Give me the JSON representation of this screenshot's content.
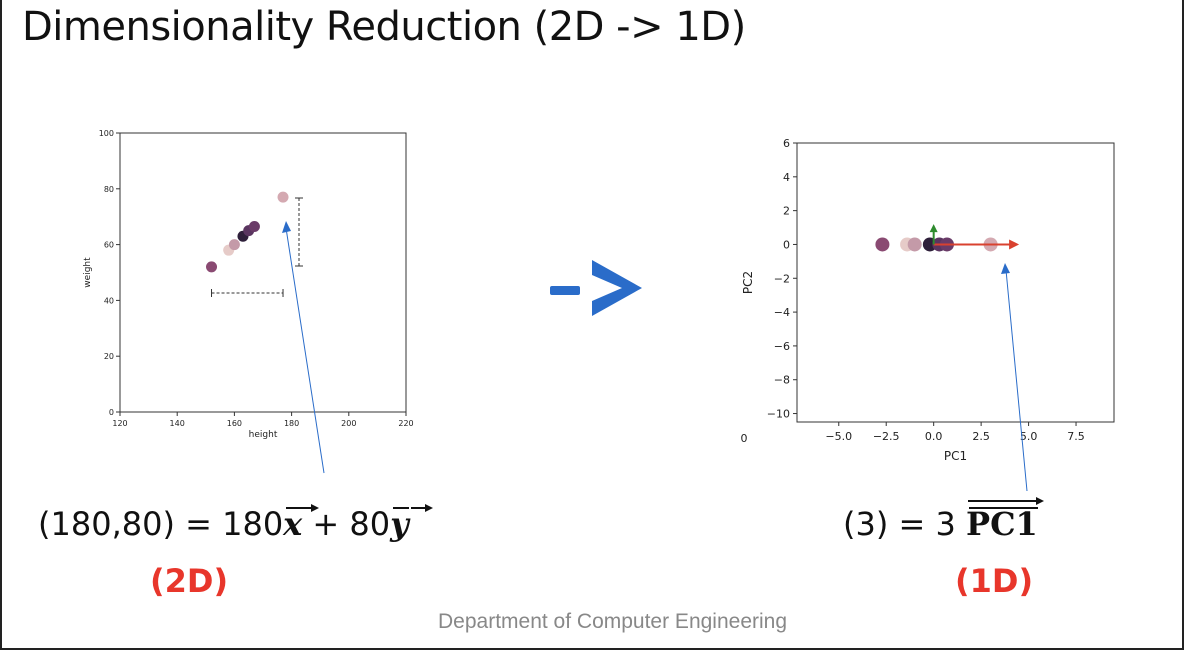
{
  "title": "Dimensionality Reduction (2D -> 1D)",
  "arrow_symbol": "->",
  "footer": "Department of Computer Engineering",
  "left_eq": {
    "lhs": "(180,80) = 180",
    "x_vec": "x",
    "mid": " + 80",
    "y_vec": "y",
    "dim": "(2D)"
  },
  "right_eq": {
    "lhs": "(3) = 3 ",
    "vec": "PC1",
    "dim": "(1D)"
  },
  "colors": {
    "accent_red": "#e8362b",
    "arrow_blue": "#2a6cc9",
    "pc1_arrow": "#d9412f",
    "pc2_arrow": "#2e8b2e"
  },
  "chart_data": [
    {
      "type": "scatter",
      "title": "",
      "xlabel": "height",
      "ylabel": "weight",
      "xlim": [
        120,
        220
      ],
      "ylim": [
        0,
        100
      ],
      "xticks": [
        "120",
        "140",
        "160",
        "180",
        "200",
        "220"
      ],
      "yticks": [
        "0",
        "20",
        "40",
        "60",
        "80",
        "100"
      ],
      "points": [
        {
          "x": 152,
          "y": 52,
          "color": "#8a4a72"
        },
        {
          "x": 158,
          "y": 58,
          "color": "#e6cbc8"
        },
        {
          "x": 160,
          "y": 60,
          "color": "#c49aa8"
        },
        {
          "x": 163,
          "y": 63,
          "color": "#2e1f3a"
        },
        {
          "x": 165,
          "y": 65,
          "color": "#5a3560"
        },
        {
          "x": 167,
          "y": 66.5,
          "color": "#6a3b68"
        },
        {
          "x": 177,
          "y": 77,
          "color": "#d4a9b1"
        }
      ],
      "grid": false
    },
    {
      "type": "scatter",
      "title": "",
      "xlabel": "PC1",
      "ylabel": "PC2",
      "xlim": [
        -7.2,
        9.5
      ],
      "ylim": [
        -10.5,
        6
      ],
      "xticks": [
        "−5.0",
        "−2.5",
        "0.0",
        "2.5",
        "5.0",
        "7.5"
      ],
      "yticks": [
        "−10",
        "−8",
        "−6",
        "−4",
        "−2",
        "0",
        "2",
        "4",
        "6"
      ],
      "points": [
        {
          "x": -2.7,
          "y": 0,
          "color": "#8a4a72"
        },
        {
          "x": -1.4,
          "y": 0,
          "color": "#e6cbc8"
        },
        {
          "x": -1.0,
          "y": 0,
          "color": "#c49aa8"
        },
        {
          "x": -0.2,
          "y": 0,
          "color": "#2e1f3a"
        },
        {
          "x": 0.3,
          "y": 0,
          "color": "#5a3560"
        },
        {
          "x": 0.7,
          "y": 0,
          "color": "#6a3b68"
        },
        {
          "x": 3.0,
          "y": 0,
          "color": "#d4a9b1"
        }
      ],
      "vectors": [
        {
          "name": "PC1",
          "dx": 4.5,
          "dy": 0
        },
        {
          "name": "PC2",
          "dx": 0,
          "dy": 1.2
        }
      ],
      "stray_label": "0",
      "grid": false
    }
  ]
}
